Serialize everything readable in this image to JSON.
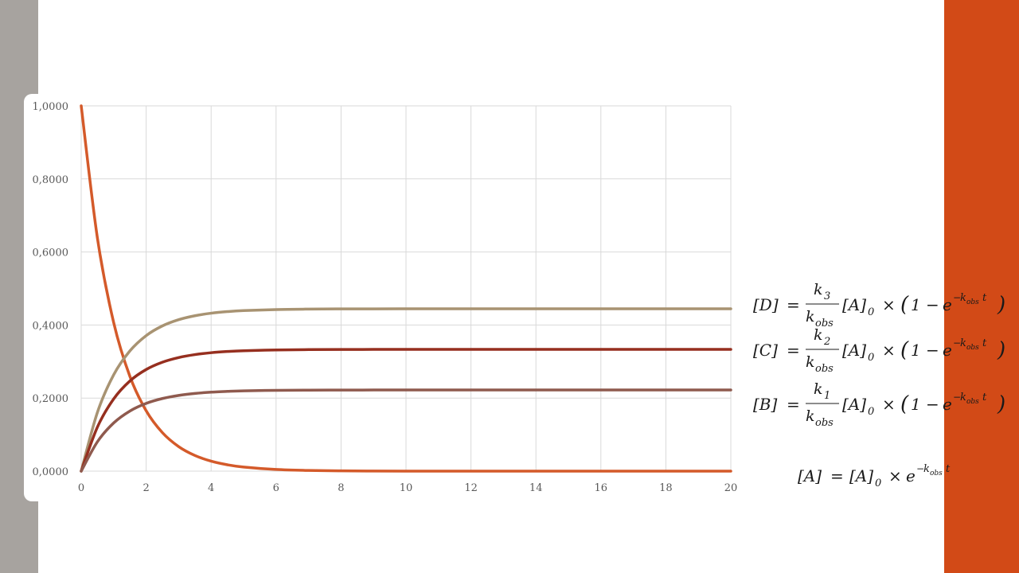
{
  "colors": {
    "left_bar": "#a7a39f",
    "right_bar": "#d24a17",
    "grid": "#d9d9d9"
  },
  "equations": {
    "D": {
      "lhs": "[D]",
      "num": "k",
      "num_sub": "3",
      "den": "k",
      "den_sub": "obs",
      "rhs": "[A]",
      "rhs_sub": "0",
      "times": "×",
      "bracket_open": "(",
      "one": "1",
      "minus": "−",
      "e": "e",
      "exp_minus": "−",
      "exp_k": "k",
      "exp_sub": "obs",
      "exp_t": "t",
      "bracket_close": ")"
    },
    "C": {
      "lhs": "[C]",
      "num": "k",
      "num_sub": "2",
      "den": "k",
      "den_sub": "obs",
      "rhs": "[A]",
      "rhs_sub": "0",
      "times": "×",
      "bracket_open": "(",
      "one": "1",
      "minus": "−",
      "e": "e",
      "exp_minus": "−",
      "exp_k": "k",
      "exp_sub": "obs",
      "exp_t": "t",
      "bracket_close": ")"
    },
    "B": {
      "lhs": "[B]",
      "num": "k",
      "num_sub": "1",
      "den": "k",
      "den_sub": "obs",
      "rhs": "[A]",
      "rhs_sub": "0",
      "times": "×",
      "bracket_open": "(",
      "one": "1",
      "minus": "−",
      "e": "e",
      "exp_minus": "−",
      "exp_k": "k",
      "exp_sub": "obs",
      "exp_t": "t",
      "bracket_close": ")"
    },
    "A": {
      "lhs": "[A]",
      "eq": "=",
      "rhs": "[A]",
      "rhs_sub": "0",
      "times": "×",
      "e": "e",
      "exp_minus": "−",
      "exp_k": "k",
      "exp_sub": "obs",
      "exp_t": "t"
    }
  },
  "chart_data": {
    "type": "line",
    "title": "",
    "xlabel": "",
    "ylabel": "",
    "xlim": [
      0,
      20
    ],
    "ylim": [
      0,
      1
    ],
    "x_ticks": [
      "0",
      "2",
      "4",
      "6",
      "8",
      "10",
      "12",
      "14",
      "16",
      "18",
      "20"
    ],
    "y_ticks": [
      "0,0000",
      "0,2000",
      "0,4000",
      "0,6000",
      "0,8000",
      "1,0000"
    ],
    "grid": true,
    "legend": "none",
    "x": [
      0,
      0.5,
      1,
      1.5,
      2,
      2.5,
      3,
      3.5,
      4,
      4.5,
      5,
      6,
      7,
      8,
      9,
      10,
      11,
      12,
      13,
      14,
      15,
      16,
      17,
      18,
      19,
      20
    ],
    "series": [
      {
        "color": "#d45a2a",
        "values": [
          1.0,
          0.6376,
          0.4066,
          0.2592,
          0.1653,
          0.1054,
          0.0672,
          0.0429,
          0.0273,
          0.0174,
          0.0111,
          0.0045,
          0.0018,
          0.0007,
          0.0003,
          0.0001,
          0.0,
          0.0,
          0.0,
          0.0,
          0.0,
          0.0,
          0.0,
          0.0,
          0.0,
          0.0
        ]
      },
      {
        "color": "#a89372",
        "values": [
          0.0,
          0.1611,
          0.2637,
          0.3292,
          0.371,
          0.3976,
          0.4146,
          0.4254,
          0.4323,
          0.4367,
          0.4395,
          0.4424,
          0.4436,
          0.4441,
          0.4443,
          0.4444,
          0.4444,
          0.4444,
          0.4444,
          0.4444,
          0.4444,
          0.4444,
          0.4444,
          0.4444,
          0.4444,
          0.4444
        ]
      },
      {
        "color": "#962f1f",
        "values": [
          0.0,
          0.1208,
          0.1978,
          0.2469,
          0.2782,
          0.2982,
          0.3109,
          0.319,
          0.3242,
          0.3275,
          0.3296,
          0.3318,
          0.3327,
          0.3331,
          0.3332,
          0.3333,
          0.3333,
          0.3333,
          0.3333,
          0.3333,
          0.3333,
          0.3333,
          0.3333,
          0.3333,
          0.3333,
          0.3333
        ]
      },
      {
        "color": "#8f5a4e",
        "values": [
          0.0,
          0.0805,
          0.1319,
          0.1646,
          0.1855,
          0.1988,
          0.2073,
          0.2127,
          0.2162,
          0.2183,
          0.2198,
          0.2212,
          0.2218,
          0.222,
          0.2221,
          0.2222,
          0.2222,
          0.2222,
          0.2222,
          0.2222,
          0.2222,
          0.2222,
          0.2222,
          0.2222,
          0.2222,
          0.2222
        ]
      }
    ]
  }
}
